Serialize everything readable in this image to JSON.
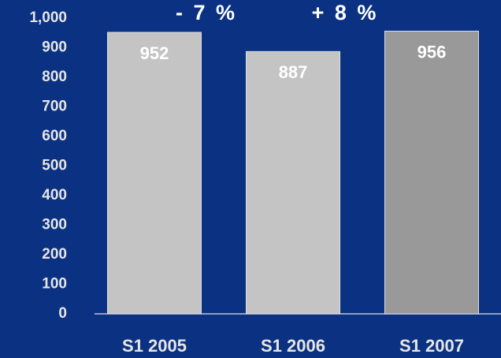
{
  "chart_data": {
    "type": "bar",
    "categories": [
      "S1 2005",
      "S1 2006",
      "S1 2007"
    ],
    "values": [
      952,
      887,
      956
    ],
    "colors": [
      "#c4c4c4",
      "#c4c4c4",
      "#999999"
    ],
    "annotations": [
      "- 7 %",
      "+ 8 %"
    ],
    "ylim": [
      0,
      1000
    ],
    "yticks": [
      0,
      100,
      200,
      300,
      400,
      500,
      600,
      700,
      800,
      900,
      {
        "value": 1000,
        "label": "1,000"
      }
    ],
    "grid": false
  }
}
